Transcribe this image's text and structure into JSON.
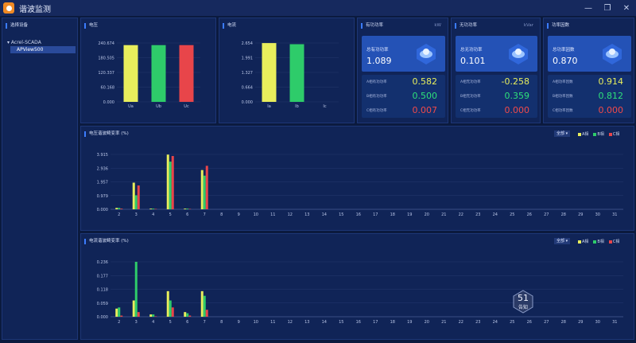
{
  "window": {
    "title": "谐波监测"
  },
  "window_buttons": {
    "min": "—",
    "max": "❐",
    "close": "✕"
  },
  "device_panel": {
    "title": "选择设备",
    "tree_root": "▾ Acrel-SCADA",
    "tree_child": "APView500"
  },
  "voltage_chart": {
    "title": "电压"
  },
  "current_chart": {
    "title": "电流"
  },
  "active_power": {
    "title": "有功功率",
    "unit": "kW",
    "total_label": "总有功功率",
    "total_value": "1.089",
    "rows": [
      {
        "label": "A相有功功率",
        "value": "0.582",
        "color": "#e8ee5c"
      },
      {
        "label": "B相有功功率",
        "value": "0.500",
        "color": "#2ee07a"
      },
      {
        "label": "C相有功功率",
        "value": "0.007",
        "color": "#f04a4a"
      }
    ]
  },
  "reactive_power": {
    "title": "无功功率",
    "unit": "kVar",
    "total_label": "总无功功率",
    "total_value": "0.101",
    "rows": [
      {
        "label": "A相无功功率",
        "value": "-0.258",
        "color": "#e8ee5c"
      },
      {
        "label": "B相无功功率",
        "value": "0.359",
        "color": "#2ee07a"
      },
      {
        "label": "C相无功功率",
        "value": "0.000",
        "color": "#f04a4a"
      }
    ]
  },
  "power_factor": {
    "title": "功率因数",
    "unit": "",
    "total_label": "总功率因数",
    "total_value": "0.870",
    "rows": [
      {
        "label": "A相功率因数",
        "value": "0.914",
        "color": "#e8ee5c"
      },
      {
        "label": "B相功率因数",
        "value": "0.812",
        "color": "#2ee07a"
      },
      {
        "label": "C相功率因数",
        "value": "0.000",
        "color": "#f04a4a"
      }
    ]
  },
  "harm_voltage": {
    "title": "电压谐波畸变率 (%)",
    "dropdown": "全部 ▾",
    "legend": [
      "A相",
      "B相",
      "C相"
    ]
  },
  "harm_current": {
    "title": "电流谐波畸变率 (%)",
    "dropdown": "全部 ▾",
    "legend": [
      "A相",
      "B相",
      "C相"
    ]
  },
  "notice": {
    "count": "51",
    "label": "告知"
  },
  "colors": {
    "A": "#e8ee5c",
    "B": "#2ecc6a",
    "C": "#e8454a",
    "accent": "#3b7cff"
  },
  "chart_data": [
    {
      "type": "bar",
      "categories": [
        "Ua",
        "Ub",
        "Uc"
      ],
      "values": [
        232,
        232,
        232
      ],
      "ylim": [
        0,
        240.674
      ],
      "yticks": [
        "240.674",
        "180.505",
        "120.337",
        "60.168",
        "0.000"
      ]
    },
    {
      "type": "bar",
      "categories": [
        "Ia",
        "Ib",
        "Ic"
      ],
      "values": [
        2.65,
        2.6,
        0
      ],
      "ylim": [
        0,
        2.654
      ],
      "yticks": [
        "2.654",
        "1.991",
        "1.327",
        "0.664",
        "0.000"
      ]
    },
    {
      "type": "bar",
      "categories": [
        "2",
        "3",
        "4",
        "5",
        "6",
        "7",
        "8",
        "9",
        "10",
        "11",
        "12",
        "13",
        "14",
        "15",
        "16",
        "17",
        "18",
        "19",
        "20",
        "21",
        "22",
        "23",
        "24",
        "25",
        "26",
        "27",
        "28",
        "29",
        "30",
        "31"
      ],
      "ylim": [
        0,
        3.915
      ],
      "yticks": [
        "3.915",
        "2.936",
        "1.957",
        "0.979",
        "0.000"
      ],
      "series": [
        {
          "name": "A相",
          "values": [
            0.1,
            1.9,
            0.05,
            3.9,
            0.05,
            2.8,
            0,
            0,
            0,
            0,
            0,
            0,
            0,
            0,
            0,
            0,
            0,
            0,
            0,
            0,
            0,
            0,
            0,
            0,
            0,
            0,
            0,
            0,
            0,
            0
          ]
        },
        {
          "name": "B相",
          "values": [
            0.1,
            1.0,
            0.05,
            3.4,
            0.05,
            2.4,
            0,
            0,
            0,
            0,
            0,
            0,
            0,
            0,
            0,
            0,
            0,
            0,
            0,
            0,
            0,
            0,
            0,
            0,
            0,
            0,
            0,
            0,
            0,
            0
          ]
        },
        {
          "name": "C相",
          "values": [
            0.05,
            1.7,
            0.03,
            3.8,
            0.03,
            3.1,
            0,
            0,
            0,
            0,
            0,
            0,
            0,
            0,
            0,
            0,
            0,
            0,
            0,
            0,
            0,
            0,
            0,
            0,
            0,
            0,
            0,
            0,
            0,
            0
          ]
        }
      ]
    },
    {
      "type": "bar",
      "categories": [
        "2",
        "3",
        "4",
        "5",
        "6",
        "7",
        "8",
        "9",
        "10",
        "11",
        "12",
        "13",
        "14",
        "15",
        "16",
        "17",
        "18",
        "19",
        "20",
        "21",
        "22",
        "23",
        "24",
        "25",
        "26",
        "27",
        "28",
        "29",
        "30",
        "31"
      ],
      "ylim": [
        0,
        0.236
      ],
      "yticks": [
        "0.236",
        "0.177",
        "0.118",
        "0.059",
        "0.000"
      ],
      "series": [
        {
          "name": "A相",
          "values": [
            0.035,
            0.07,
            0.01,
            0.11,
            0.02,
            0.11,
            0,
            0,
            0,
            0,
            0,
            0,
            0,
            0,
            0,
            0,
            0,
            0,
            0,
            0,
            0,
            0,
            0,
            0,
            0,
            0,
            0,
            0,
            0,
            0
          ]
        },
        {
          "name": "B相",
          "values": [
            0.04,
            0.24,
            0.01,
            0.07,
            0.015,
            0.09,
            0,
            0,
            0,
            0,
            0,
            0,
            0,
            0,
            0,
            0,
            0,
            0,
            0,
            0,
            0,
            0,
            0,
            0,
            0,
            0,
            0,
            0,
            0,
            0
          ]
        },
        {
          "name": "C相",
          "values": [
            0.005,
            0.02,
            0.002,
            0.04,
            0.005,
            0.03,
            0,
            0,
            0,
            0,
            0,
            0,
            0,
            0,
            0,
            0,
            0,
            0,
            0,
            0,
            0,
            0,
            0,
            0,
            0,
            0,
            0,
            0,
            0,
            0
          ]
        }
      ]
    }
  ]
}
